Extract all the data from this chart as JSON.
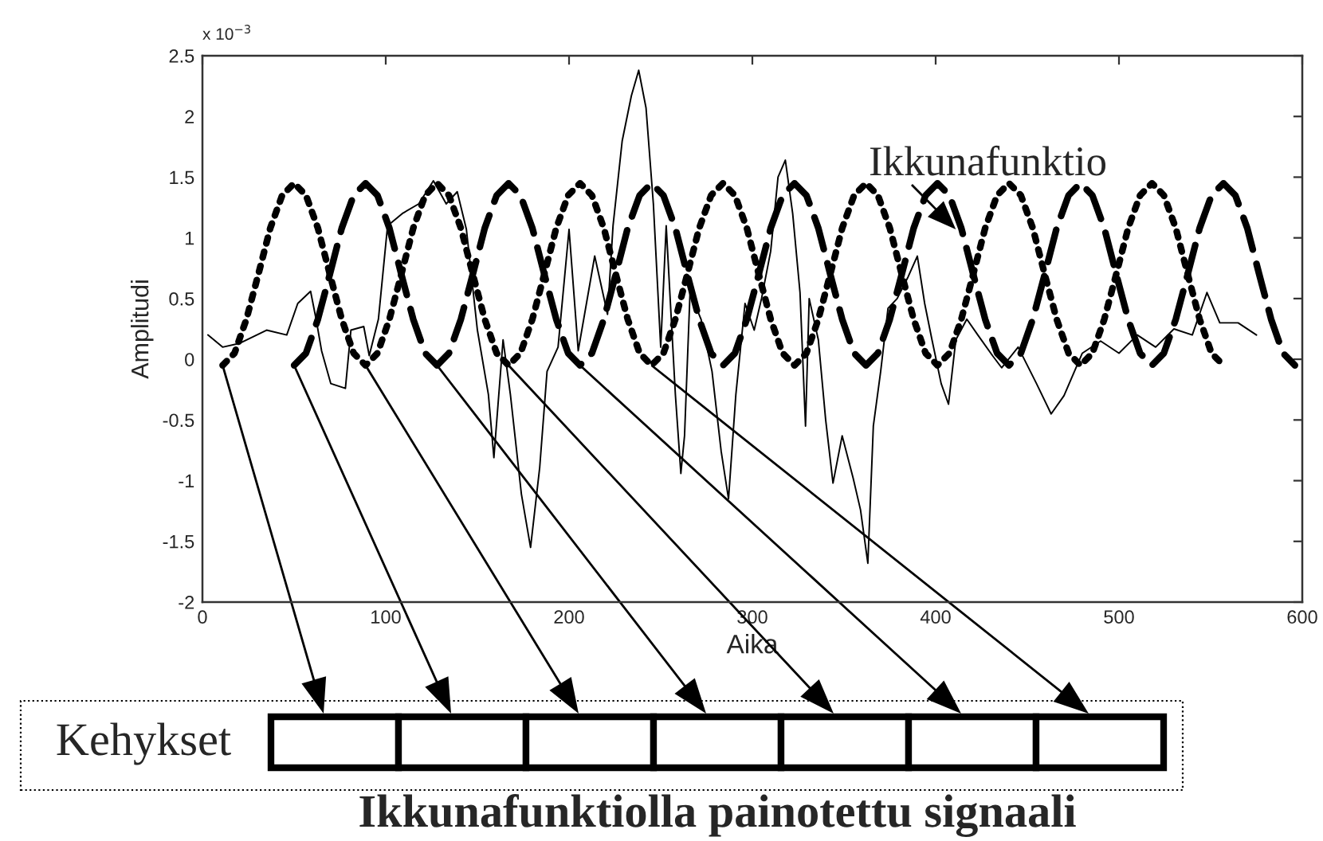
{
  "chart_data": {
    "type": "line",
    "xlabel": "Aika",
    "ylabel": "Amplitudi",
    "xlim": [
      0,
      600
    ],
    "xticks": [
      0,
      100,
      200,
      300,
      400,
      500,
      600
    ],
    "ylim": [
      -2,
      2.5
    ],
    "yticks": [
      -2,
      -1.5,
      -1,
      -0.5,
      0,
      0.5,
      1,
      1.5,
      2,
      2.5
    ],
    "grid": false,
    "legend": false,
    "marker": "none",
    "annotations": [
      "x 10$^{−3}$",
      {
        "text": "Ikkunafunktio",
        "x": 411,
        "y": 1.07
      },
      "Kehykset",
      "Ikkunafunktiolla painotettu signaali"
    ],
    "series": [
      {
        "color": "#000000",
        "line_style": "solid",
        "x": [
          3,
          11,
          20,
          35,
          46,
          52,
          59,
          62,
          65,
          70,
          78,
          81,
          88,
          91,
          96,
          101,
          109,
          118,
          126,
          133,
          139,
          144,
          150,
          156,
          159,
          164,
          168,
          174,
          179,
          184,
          188,
          194,
          200,
          205,
          214,
          221,
          224,
          229,
          234,
          238,
          242,
          246,
          250,
          253,
          258,
          261,
          263,
          266,
          272,
          278,
          283,
          287,
          291,
          296,
          301,
          305,
          310,
          314,
          318,
          322,
          326,
          329,
          331,
          336,
          340,
          344,
          349,
          355,
          359,
          363,
          366,
          370,
          374,
          379,
          385,
          390,
          394,
          398,
          403,
          407,
          411,
          417,
          423,
          431,
          436,
          445,
          455,
          463,
          470,
          480,
          490,
          500,
          510,
          520,
          530,
          540,
          548,
          555,
          565,
          575
        ],
        "values": [
          0.2,
          0.1,
          0.13,
          0.24,
          0.2,
          0.46,
          0.56,
          0.33,
          0.07,
          -0.2,
          -0.24,
          0.24,
          0.27,
          0.03,
          0.33,
          1.1,
          1.2,
          1.28,
          1.47,
          1.28,
          1.38,
          1.07,
          0.24,
          -0.29,
          -0.81,
          0.16,
          -0.29,
          -1.11,
          -1.55,
          -0.89,
          -0.1,
          0.1,
          1.07,
          0.07,
          0.85,
          0.37,
          1.1,
          1.8,
          2.17,
          2.38,
          2.07,
          1.28,
          0.1,
          1.1,
          -0.29,
          -0.94,
          -0.63,
          0.55,
          0.33,
          -0.1,
          -0.76,
          -1.15,
          -0.29,
          0.46,
          0.24,
          0.5,
          0.89,
          1.5,
          1.64,
          1.2,
          0.55,
          -0.55,
          0.5,
          0.16,
          -0.5,
          -1.02,
          -0.63,
          -0.98,
          -1.24,
          -1.68,
          -0.55,
          -0.1,
          0.42,
          0.5,
          0.68,
          0.85,
          0.46,
          0.16,
          -0.2,
          -0.37,
          0.16,
          0.33,
          0.2,
          0.03,
          -0.07,
          0.1,
          -0.2,
          -0.45,
          -0.3,
          0.05,
          0.15,
          0.05,
          0.2,
          0.1,
          0.25,
          0.2,
          0.55,
          0.3,
          0.3,
          0.2
        ]
      },
      {
        "color": "#000000",
        "line_style": "dotted",
        "x": [
          11,
          17.5,
          24,
          30.5,
          37,
          43.5,
          50,
          56.5,
          63,
          69.5,
          76,
          82.5,
          89,
          95.5,
          102,
          108.5,
          115,
          121.5,
          128,
          134.5,
          141,
          147.5,
          154,
          160.5,
          167,
          173.5,
          180,
          186.5,
          193,
          199.5,
          206,
          212.5,
          219,
          225.5,
          232,
          238.5,
          245,
          251.5,
          258,
          264.5,
          271,
          277.5,
          284,
          290.5,
          297,
          303.5,
          310,
          316.5,
          323,
          329.5,
          336,
          342.5,
          349,
          355.5,
          362,
          368.5,
          375,
          381.5,
          388,
          394.5,
          401,
          407.5,
          414,
          420.5,
          427,
          433.5,
          440,
          446.5,
          453,
          459.5,
          466,
          472.5,
          479,
          485.5,
          492,
          498.5,
          505,
          511.5,
          518,
          524.5,
          531,
          537.5,
          544,
          550.5,
          557
        ],
        "values": [
          -0.05,
          0.05,
          0.33,
          0.7,
          1.08,
          1.35,
          1.45,
          1.35,
          1.08,
          0.7,
          0.33,
          0.05,
          -0.05,
          0.05,
          0.33,
          0.7,
          1.08,
          1.35,
          1.45,
          1.35,
          1.08,
          0.7,
          0.33,
          0.05,
          -0.05,
          0.05,
          0.33,
          0.7,
          1.08,
          1.35,
          1.45,
          1.35,
          1.08,
          0.7,
          0.33,
          0.05,
          -0.05,
          0.05,
          0.33,
          0.7,
          1.08,
          1.35,
          1.45,
          1.35,
          1.08,
          0.7,
          0.33,
          0.05,
          -0.05,
          0.05,
          0.33,
          0.7,
          1.08,
          1.35,
          1.45,
          1.35,
          1.08,
          0.7,
          0.33,
          0.05,
          -0.05,
          0.05,
          0.33,
          0.7,
          1.08,
          1.35,
          1.45,
          1.35,
          1.08,
          0.7,
          0.33,
          0.05,
          -0.05,
          0.05,
          0.33,
          0.7,
          1.08,
          1.35,
          1.45,
          1.35,
          1.08,
          0.7,
          0.33,
          0.05,
          -0.05
        ]
      },
      {
        "color": "#000000",
        "line_style": "dashed",
        "x": [
          50,
          56.5,
          63,
          69.5,
          76,
          82.5,
          89,
          95.5,
          102,
          108.5,
          115,
          121.5,
          128,
          134.5,
          141,
          147.5,
          154,
          160.5,
          167,
          173.5,
          180,
          186.5,
          193,
          199.5,
          206,
          212.5,
          219,
          225.5,
          232,
          238.5,
          245,
          251.5,
          258,
          264.5,
          271,
          277.5,
          284,
          290.5,
          297,
          303.5,
          310,
          316.5,
          323,
          329.5,
          336,
          342.5,
          349,
          355.5,
          362,
          368.5,
          375,
          381.5,
          388,
          394.5,
          401,
          407.5,
          414,
          420.5,
          427,
          433.5,
          440,
          446.5,
          453,
          459.5,
          466,
          472.5,
          479,
          485.5,
          492,
          498.5,
          505,
          511.5,
          518,
          524.5,
          531,
          537.5,
          544,
          550.5,
          557,
          563.5,
          570,
          576.5,
          583,
          589.5,
          596
        ],
        "values": [
          -0.05,
          0.05,
          0.33,
          0.7,
          1.08,
          1.35,
          1.45,
          1.35,
          1.08,
          0.7,
          0.33,
          0.05,
          -0.05,
          0.05,
          0.33,
          0.7,
          1.08,
          1.35,
          1.45,
          1.35,
          1.08,
          0.7,
          0.33,
          0.05,
          -0.05,
          0.05,
          0.33,
          0.7,
          1.08,
          1.35,
          1.45,
          1.35,
          1.08,
          0.7,
          0.33,
          0.05,
          -0.05,
          0.05,
          0.33,
          0.7,
          1.08,
          1.35,
          1.45,
          1.35,
          1.08,
          0.7,
          0.33,
          0.05,
          -0.05,
          0.05,
          0.33,
          0.7,
          1.08,
          1.35,
          1.45,
          1.35,
          1.08,
          0.7,
          0.33,
          0.05,
          -0.05,
          0.05,
          0.33,
          0.7,
          1.08,
          1.35,
          1.45,
          1.35,
          1.08,
          0.7,
          0.33,
          0.05,
          -0.05,
          0.05,
          0.33,
          0.7,
          1.08,
          1.35,
          1.45,
          1.35,
          1.08,
          0.7,
          0.33,
          0.05,
          -0.05
        ]
      }
    ]
  }
}
